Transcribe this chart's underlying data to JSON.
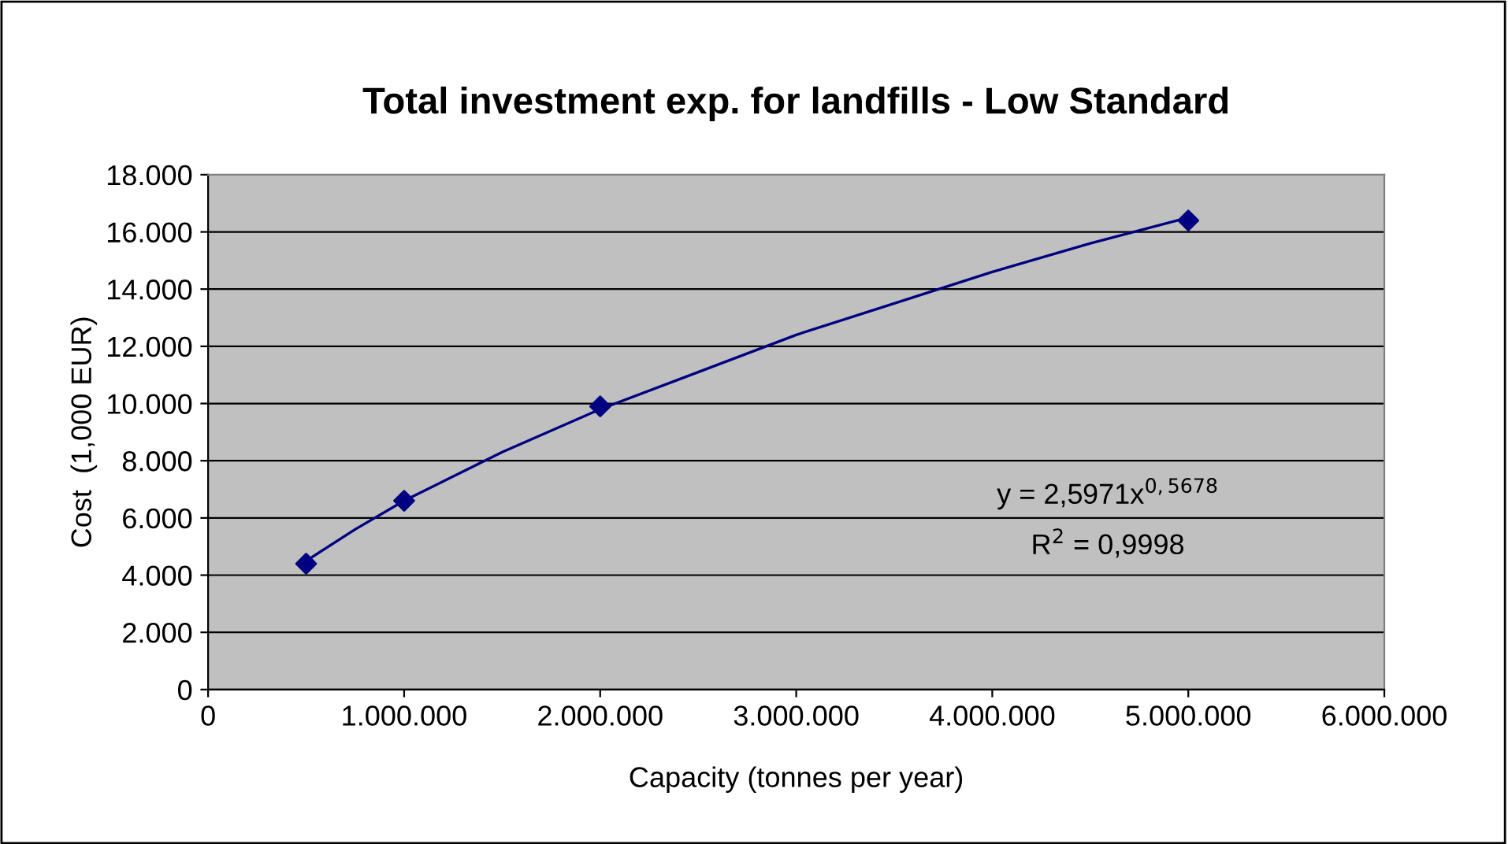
{
  "chart_data": {
    "type": "scatter",
    "title": "Total investment exp. for landfills - Low Standard",
    "xlabel": "Capacity (tonnes per year)",
    "ylabel": "Cost  (1,000 EUR)",
    "xlim": [
      0,
      6000000
    ],
    "ylim": [
      0,
      18000
    ],
    "xticks": [
      0,
      {
        "value": 1000000,
        "label": "1.000.000"
      },
      {
        "value": 2000000,
        "label": "2.000.000"
      },
      {
        "value": 3000000,
        "label": "3.000.000"
      },
      {
        "value": 4000000,
        "label": "4.000.000"
      },
      {
        "value": 5000000,
        "label": "5.000.000"
      },
      {
        "value": 6000000,
        "label": "6.000.000"
      }
    ],
    "yticks": [
      0,
      {
        "value": 2000,
        "label": "2.000"
      },
      {
        "value": 4000,
        "label": "4.000"
      },
      {
        "value": 6000,
        "label": "6.000"
      },
      {
        "value": 8000,
        "label": "8.000"
      },
      {
        "value": 10000,
        "label": "10.000"
      },
      {
        "value": 12000,
        "label": "12.000"
      },
      {
        "value": 14000,
        "label": "14.000"
      },
      {
        "value": 16000,
        "label": "16.000"
      },
      {
        "value": 18000,
        "label": "18.000"
      }
    ],
    "grid": "y",
    "legend": false,
    "series": [
      {
        "color": "#000080",
        "marker": "diamond",
        "x": [
          500000,
          1000000,
          2000000,
          5000000
        ],
        "values": [
          4400,
          6600,
          9900,
          16400
        ]
      },
      {
        "type": "line",
        "color": "#000080",
        "marker": "none",
        "line_style": "solid",
        "x": [
          500000,
          750000,
          1000000,
          1500000,
          2000000,
          2500000,
          3000000,
          3500000,
          4000000,
          4500000,
          5000000
        ],
        "values": [
          4500,
          5600,
          6600,
          8300,
          9800,
          11100,
          12400,
          13500,
          14600,
          15600,
          16500
        ]
      }
    ],
    "annotations": [
      "y = 2,5971x$^{0,5678}$",
      "R$^{2}$ = 0,9998"
    ]
  }
}
